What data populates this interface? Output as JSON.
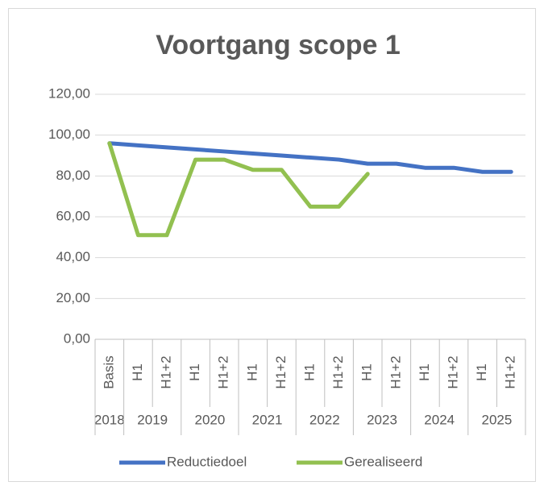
{
  "chart_data": {
    "type": "line",
    "title": "Voortgang scope 1",
    "categories": [
      "Basis",
      "H1",
      "H1+2",
      "H1",
      "H1+2",
      "H1",
      "H1+2",
      "H1",
      "H1+2",
      "H1",
      "H1+2",
      "H1",
      "H1+2",
      "H1",
      "H1+2"
    ],
    "groups": [
      {
        "label": "2018",
        "count": 1
      },
      {
        "label": "2019",
        "count": 2
      },
      {
        "label": "2020",
        "count": 2
      },
      {
        "label": "2021",
        "count": 2
      },
      {
        "label": "2022",
        "count": 2
      },
      {
        "label": "2023",
        "count": 2
      },
      {
        "label": "2024",
        "count": 2
      },
      {
        "label": "2025",
        "count": 2
      }
    ],
    "series": [
      {
        "name": "Reductiedoel",
        "color": "#4472c4",
        "values": [
          96,
          95,
          94,
          93,
          92,
          91,
          90,
          89,
          88,
          86,
          86,
          84,
          84,
          82,
          82
        ]
      },
      {
        "name": "Gerealiseerd",
        "color": "#92c050",
        "values": [
          96,
          51,
          51,
          88,
          88,
          83,
          83,
          65,
          65,
          81,
          null,
          null,
          null,
          null,
          null
        ]
      }
    ],
    "ylim": [
      0,
      120
    ],
    "yticks": [
      {
        "value": 0,
        "label": "0,00"
      },
      {
        "value": 20,
        "label": "20,00"
      },
      {
        "value": 40,
        "label": "40,00"
      },
      {
        "value": 60,
        "label": "60,00"
      },
      {
        "value": 80,
        "label": "80,00"
      },
      {
        "value": 100,
        "label": "100,00"
      },
      {
        "value": 120,
        "label": "120,00"
      }
    ],
    "grid": true,
    "legend": "bottom"
  }
}
